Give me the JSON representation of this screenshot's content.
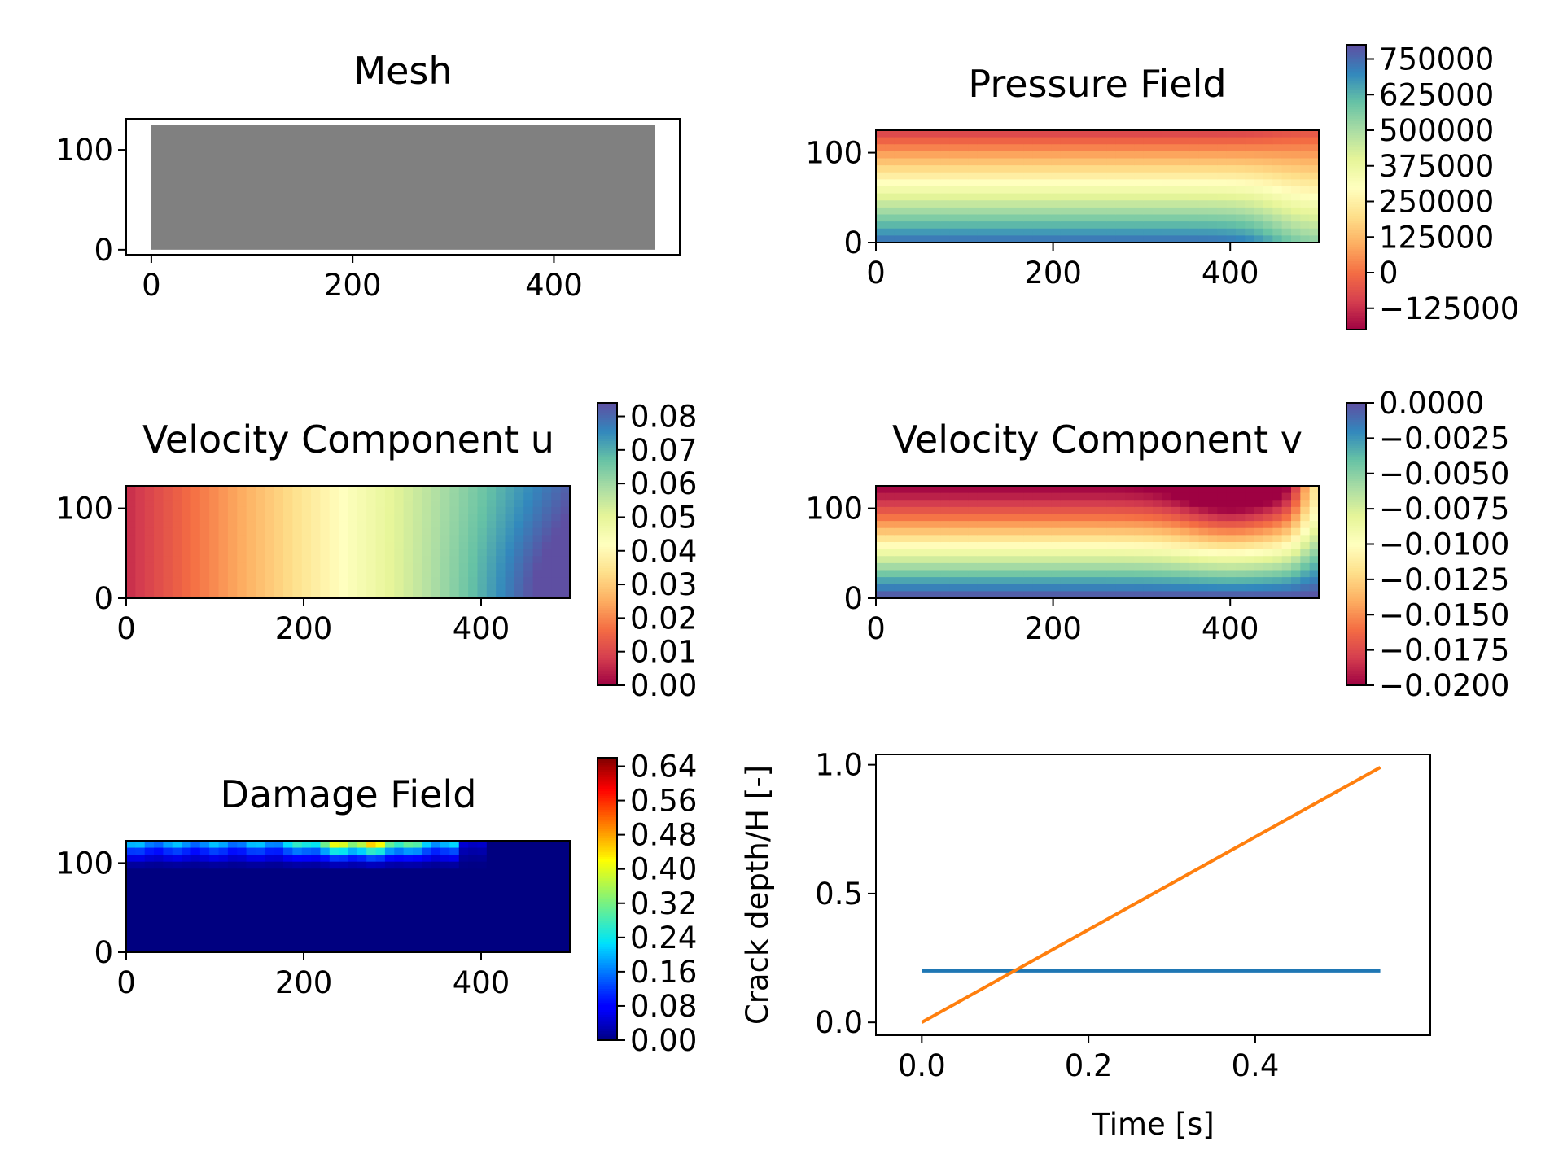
{
  "chart_data": [
    {
      "type": "scatter",
      "title": "Mesh",
      "marker_color": "#808080",
      "x_domain": [
        0,
        500
      ],
      "y_domain": [
        0,
        125
      ],
      "xlim": [
        -25,
        525
      ],
      "ylim": [
        -5,
        131
      ],
      "xticks": [
        0,
        200,
        400
      ],
      "yticks": [
        0,
        100
      ]
    },
    {
      "type": "heatmap",
      "title": "Pressure Field",
      "cmap": "Spectral",
      "xlim": [
        0,
        500
      ],
      "ylim": [
        0,
        125
      ],
      "xticks": [
        0,
        200,
        400
      ],
      "yticks": [
        0,
        100
      ],
      "clim": [
        -200000,
        800000
      ],
      "colorbar_ticks": [
        -125000,
        0,
        125000,
        250000,
        375000,
        500000,
        625000,
        750000
      ],
      "colorbar_labels": [
        "−125000",
        "0",
        "125000",
        "250000",
        "375000",
        "500000",
        "625000",
        "750000"
      ]
    },
    {
      "type": "heatmap",
      "title": "Velocity Component u",
      "cmap": "Spectral",
      "xlim": [
        0,
        500
      ],
      "ylim": [
        0,
        125
      ],
      "xticks": [
        0,
        200,
        400
      ],
      "yticks": [
        0,
        100
      ],
      "clim": [
        0,
        0.084
      ],
      "colorbar_ticks": [
        0,
        0.01,
        0.02,
        0.03,
        0.04,
        0.05,
        0.06,
        0.07,
        0.08
      ],
      "colorbar_labels": [
        "0.00",
        "0.01",
        "0.02",
        "0.03",
        "0.04",
        "0.05",
        "0.06",
        "0.07",
        "0.08"
      ]
    },
    {
      "type": "heatmap",
      "title": "Velocity Component v",
      "cmap": "Spectral",
      "xlim": [
        0,
        500
      ],
      "ylim": [
        0,
        125
      ],
      "xticks": [
        0,
        200,
        400
      ],
      "yticks": [
        0,
        100
      ],
      "clim": [
        -0.02,
        0
      ],
      "colorbar_ticks": [
        -0.02,
        -0.0175,
        -0.015,
        -0.0125,
        -0.01,
        -0.0075,
        -0.005,
        -0.0025,
        0
      ],
      "colorbar_labels": [
        "−0.0200",
        "−0.0175",
        "−0.0150",
        "−0.0125",
        "−0.0100",
        "−0.0075",
        "−0.0050",
        "−0.0025",
        "0.0000"
      ]
    },
    {
      "type": "heatmap",
      "title": "Damage Field",
      "cmap": "jet",
      "xlim": [
        0,
        500
      ],
      "ylim": [
        0,
        125
      ],
      "xticks": [
        0,
        200,
        400
      ],
      "yticks": [
        0,
        100
      ],
      "clim": [
        0,
        0.66
      ],
      "colorbar_ticks": [
        0,
        0.08,
        0.16,
        0.24,
        0.32,
        0.4,
        0.48,
        0.56,
        0.64
      ],
      "colorbar_labels": [
        "0.00",
        "0.08",
        "0.16",
        "0.24",
        "0.32",
        "0.40",
        "0.48",
        "0.56",
        "0.64"
      ]
    },
    {
      "type": "line",
      "title": "",
      "xlabel": "Time [s]",
      "ylabel": "Crack depth/H [-]",
      "xlim": [
        -0.055,
        0.61
      ],
      "ylim": [
        -0.05,
        1.04
      ],
      "xticks": [
        0,
        0.2,
        0.4
      ],
      "xtick_labels": [
        "0.0",
        "0.2",
        "0.4"
      ],
      "yticks": [
        0,
        0.5,
        1.0
      ],
      "ytick_labels": [
        "0.0",
        "0.5",
        "1.0"
      ],
      "series": [
        {
          "color": "#1f77b4",
          "x": [
            0,
            0.55
          ],
          "y": [
            0.2,
            0.2
          ]
        },
        {
          "color": "#ff7f0e",
          "x": [
            0,
            0.55
          ],
          "y": [
            0,
            0.99
          ]
        }
      ]
    }
  ]
}
